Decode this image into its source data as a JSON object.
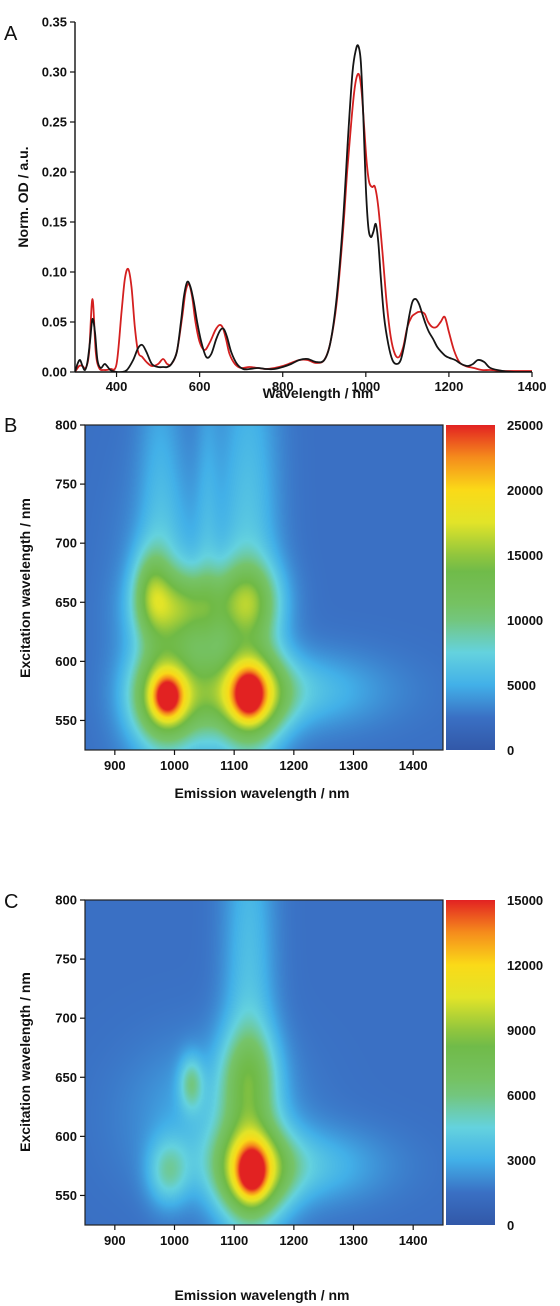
{
  "chart_data": [
    {
      "panel_label": "A",
      "type": "line",
      "xlabel": "Wavelength / nm",
      "ylabel": "Norm. OD / a.u.",
      "xlim": [
        300,
        1400
      ],
      "ylim": [
        0,
        0.35
      ],
      "xticks": [
        400,
        600,
        800,
        1000,
        1200,
        1400
      ],
      "yticks": [
        "0.00",
        "0.05",
        "0.10",
        "0.15",
        "0.20",
        "0.25",
        "0.30",
        "0.35"
      ],
      "series": [
        {
          "color": "#d42020",
          "x": [
            300,
            310,
            318,
            326,
            334,
            342,
            350,
            358,
            370,
            385,
            400,
            412,
            420,
            428,
            436,
            444,
            452,
            462,
            472,
            485,
            500,
            512,
            522,
            532,
            545,
            558,
            566,
            574,
            582,
            590,
            600,
            612,
            625,
            638,
            648,
            656,
            664,
            672,
            685,
            700,
            720,
            740,
            760,
            780,
            800,
            820,
            840,
            860,
            880,
            900,
            915,
            930,
            945,
            955,
            965,
            972,
            978,
            984,
            990,
            996,
            1002,
            1008,
            1015,
            1022,
            1030,
            1040,
            1050,
            1060,
            1070,
            1080,
            1090,
            1100,
            1110,
            1118,
            1126,
            1134,
            1142,
            1150,
            1160,
            1170,
            1180,
            1190,
            1200,
            1212,
            1225,
            1240,
            1260,
            1280,
            1300,
            1330,
            1360,
            1400
          ],
          "y": [
            0.0,
            0.006,
            0.006,
            0.004,
            0.02,
            0.073,
            0.02,
            0.004,
            0.002,
            0.003,
            0.008,
            0.06,
            0.093,
            0.103,
            0.085,
            0.045,
            0.02,
            0.015,
            0.01,
            0.006,
            0.008,
            0.013,
            0.008,
            0.008,
            0.02,
            0.055,
            0.08,
            0.088,
            0.075,
            0.05,
            0.03,
            0.022,
            0.03,
            0.042,
            0.047,
            0.044,
            0.032,
            0.018,
            0.008,
            0.004,
            0.005,
            0.004,
            0.003,
            0.004,
            0.006,
            0.009,
            0.012,
            0.012,
            0.009,
            0.012,
            0.03,
            0.07,
            0.14,
            0.2,
            0.25,
            0.28,
            0.295,
            0.297,
            0.28,
            0.245,
            0.21,
            0.19,
            0.185,
            0.185,
            0.165,
            0.12,
            0.07,
            0.035,
            0.018,
            0.015,
            0.025,
            0.045,
            0.055,
            0.058,
            0.06,
            0.06,
            0.058,
            0.05,
            0.045,
            0.045,
            0.05,
            0.055,
            0.04,
            0.022,
            0.01,
            0.006,
            0.004,
            0.002,
            0.002,
            0.001,
            0.001,
            0.001
          ]
        },
        {
          "color": "#151515",
          "x": [
            300,
            306,
            312,
            318,
            324,
            330,
            336,
            342,
            348,
            354,
            362,
            372,
            385,
            400,
            412,
            425,
            440,
            452,
            462,
            472,
            485,
            500,
            512,
            522,
            532,
            545,
            555,
            562,
            570,
            578,
            586,
            594,
            604,
            616,
            628,
            640,
            650,
            658,
            666,
            676,
            690,
            705,
            720,
            740,
            760,
            780,
            800,
            820,
            840,
            860,
            880,
            900,
            915,
            930,
            945,
            958,
            968,
            976,
            982,
            988,
            994,
            1000,
            1006,
            1012,
            1018,
            1024,
            1030,
            1036,
            1044,
            1054,
            1064,
            1074,
            1084,
            1094,
            1104,
            1112,
            1120,
            1128,
            1136,
            1144,
            1152,
            1162,
            1172,
            1182,
            1192,
            1202,
            1215,
            1230,
            1245,
            1258,
            1270,
            1285,
            1300,
            1330,
            1360,
            1400
          ],
          "y": [
            0.0,
            0.008,
            0.012,
            0.006,
            0.002,
            0.01,
            0.03,
            0.053,
            0.04,
            0.012,
            0.004,
            0.008,
            0.002,
            0.0,
            0.0,
            0.002,
            0.012,
            0.024,
            0.027,
            0.02,
            0.008,
            0.005,
            0.005,
            0.005,
            0.008,
            0.02,
            0.05,
            0.075,
            0.09,
            0.085,
            0.07,
            0.05,
            0.03,
            0.015,
            0.018,
            0.033,
            0.042,
            0.043,
            0.035,
            0.02,
            0.008,
            0.003,
            0.003,
            0.004,
            0.003,
            0.003,
            0.005,
            0.008,
            0.012,
            0.013,
            0.01,
            0.012,
            0.03,
            0.075,
            0.15,
            0.24,
            0.3,
            0.322,
            0.326,
            0.31,
            0.255,
            0.185,
            0.145,
            0.135,
            0.14,
            0.148,
            0.13,
            0.095,
            0.055,
            0.028,
            0.012,
            0.008,
            0.012,
            0.03,
            0.055,
            0.07,
            0.073,
            0.068,
            0.058,
            0.048,
            0.04,
            0.033,
            0.025,
            0.02,
            0.016,
            0.014,
            0.012,
            0.008,
            0.006,
            0.008,
            0.012,
            0.01,
            0.004,
            0.001,
            0.0,
            0.0
          ]
        }
      ]
    },
    {
      "panel_label": "B",
      "type": "heatmap",
      "xlabel": "Emission wavelength / nm",
      "ylabel": "Excitation wavelength / nm",
      "xlim": [
        850,
        1450
      ],
      "ylim": [
        525,
        800
      ],
      "xticks": [
        900,
        1000,
        1100,
        1200,
        1300,
        1400
      ],
      "yticks": [
        550,
        600,
        650,
        700,
        750,
        800
      ],
      "colorbar": {
        "min": 0,
        "max": 25000,
        "ticks": [
          "0",
          "5000",
          "10000",
          "15000",
          "20000",
          "25000"
        ]
      },
      "background": 2500,
      "features": [
        {
          "x": 988,
          "y": 570,
          "sx": 40,
          "sy": 26,
          "value": 14000
        },
        {
          "x": 988,
          "y": 570,
          "sx": 15,
          "sy": 11,
          "value": 9000
        },
        {
          "x": 1125,
          "y": 572,
          "sx": 42,
          "sy": 26,
          "value": 14000
        },
        {
          "x": 1125,
          "y": 572,
          "sx": 15,
          "sy": 12,
          "value": 9000
        },
        {
          "x": 1180,
          "y": 575,
          "sx": 110,
          "sy": 22,
          "value": 4200
        },
        {
          "x": 1015,
          "y": 645,
          "sx": 48,
          "sy": 22,
          "value": 8500
        },
        {
          "x": 1125,
          "y": 650,
          "sx": 38,
          "sy": 24,
          "value": 8500
        },
        {
          "x": 960,
          "y": 660,
          "sx": 22,
          "sy": 25,
          "value": 6000
        },
        {
          "x": 1005,
          "y": 620,
          "sx": 60,
          "sy": 90,
          "value": 3500
        },
        {
          "x": 1125,
          "y": 660,
          "sx": 35,
          "sy": 160,
          "value": 4000
        },
        {
          "x": 975,
          "y": 720,
          "sx": 25,
          "sy": 120,
          "value": 2200
        },
        {
          "x": 1055,
          "y": 720,
          "sx": 14,
          "sy": 120,
          "value": 1500
        }
      ]
    },
    {
      "panel_label": "C",
      "type": "heatmap",
      "xlabel": "Emission wavelength / nm",
      "ylabel": "Excitation wavelength / nm",
      "xlim": [
        850,
        1450
      ],
      "ylim": [
        525,
        800
      ],
      "xticks": [
        900,
        1000,
        1100,
        1200,
        1300,
        1400
      ],
      "yticks": [
        550,
        600,
        650,
        700,
        750,
        800
      ],
      "colorbar": {
        "min": 0,
        "max": 15000,
        "ticks": [
          "0",
          "3000",
          "6000",
          "9000",
          "12000",
          "15000"
        ]
      },
      "background": 1500,
      "features": [
        {
          "x": 1130,
          "y": 570,
          "sx": 42,
          "sy": 28,
          "value": 8000
        },
        {
          "x": 1130,
          "y": 570,
          "sx": 15,
          "sy": 13,
          "value": 6000
        },
        {
          "x": 1190,
          "y": 575,
          "sx": 100,
          "sy": 22,
          "value": 2500
        },
        {
          "x": 990,
          "y": 570,
          "sx": 24,
          "sy": 20,
          "value": 3200
        },
        {
          "x": 1028,
          "y": 645,
          "sx": 14,
          "sy": 16,
          "value": 3200
        },
        {
          "x": 1125,
          "y": 650,
          "sx": 35,
          "sy": 30,
          "value": 3800
        },
        {
          "x": 1125,
          "y": 690,
          "sx": 30,
          "sy": 160,
          "value": 2300
        },
        {
          "x": 1060,
          "y": 620,
          "sx": 90,
          "sy": 40,
          "value": 1500
        }
      ]
    }
  ]
}
